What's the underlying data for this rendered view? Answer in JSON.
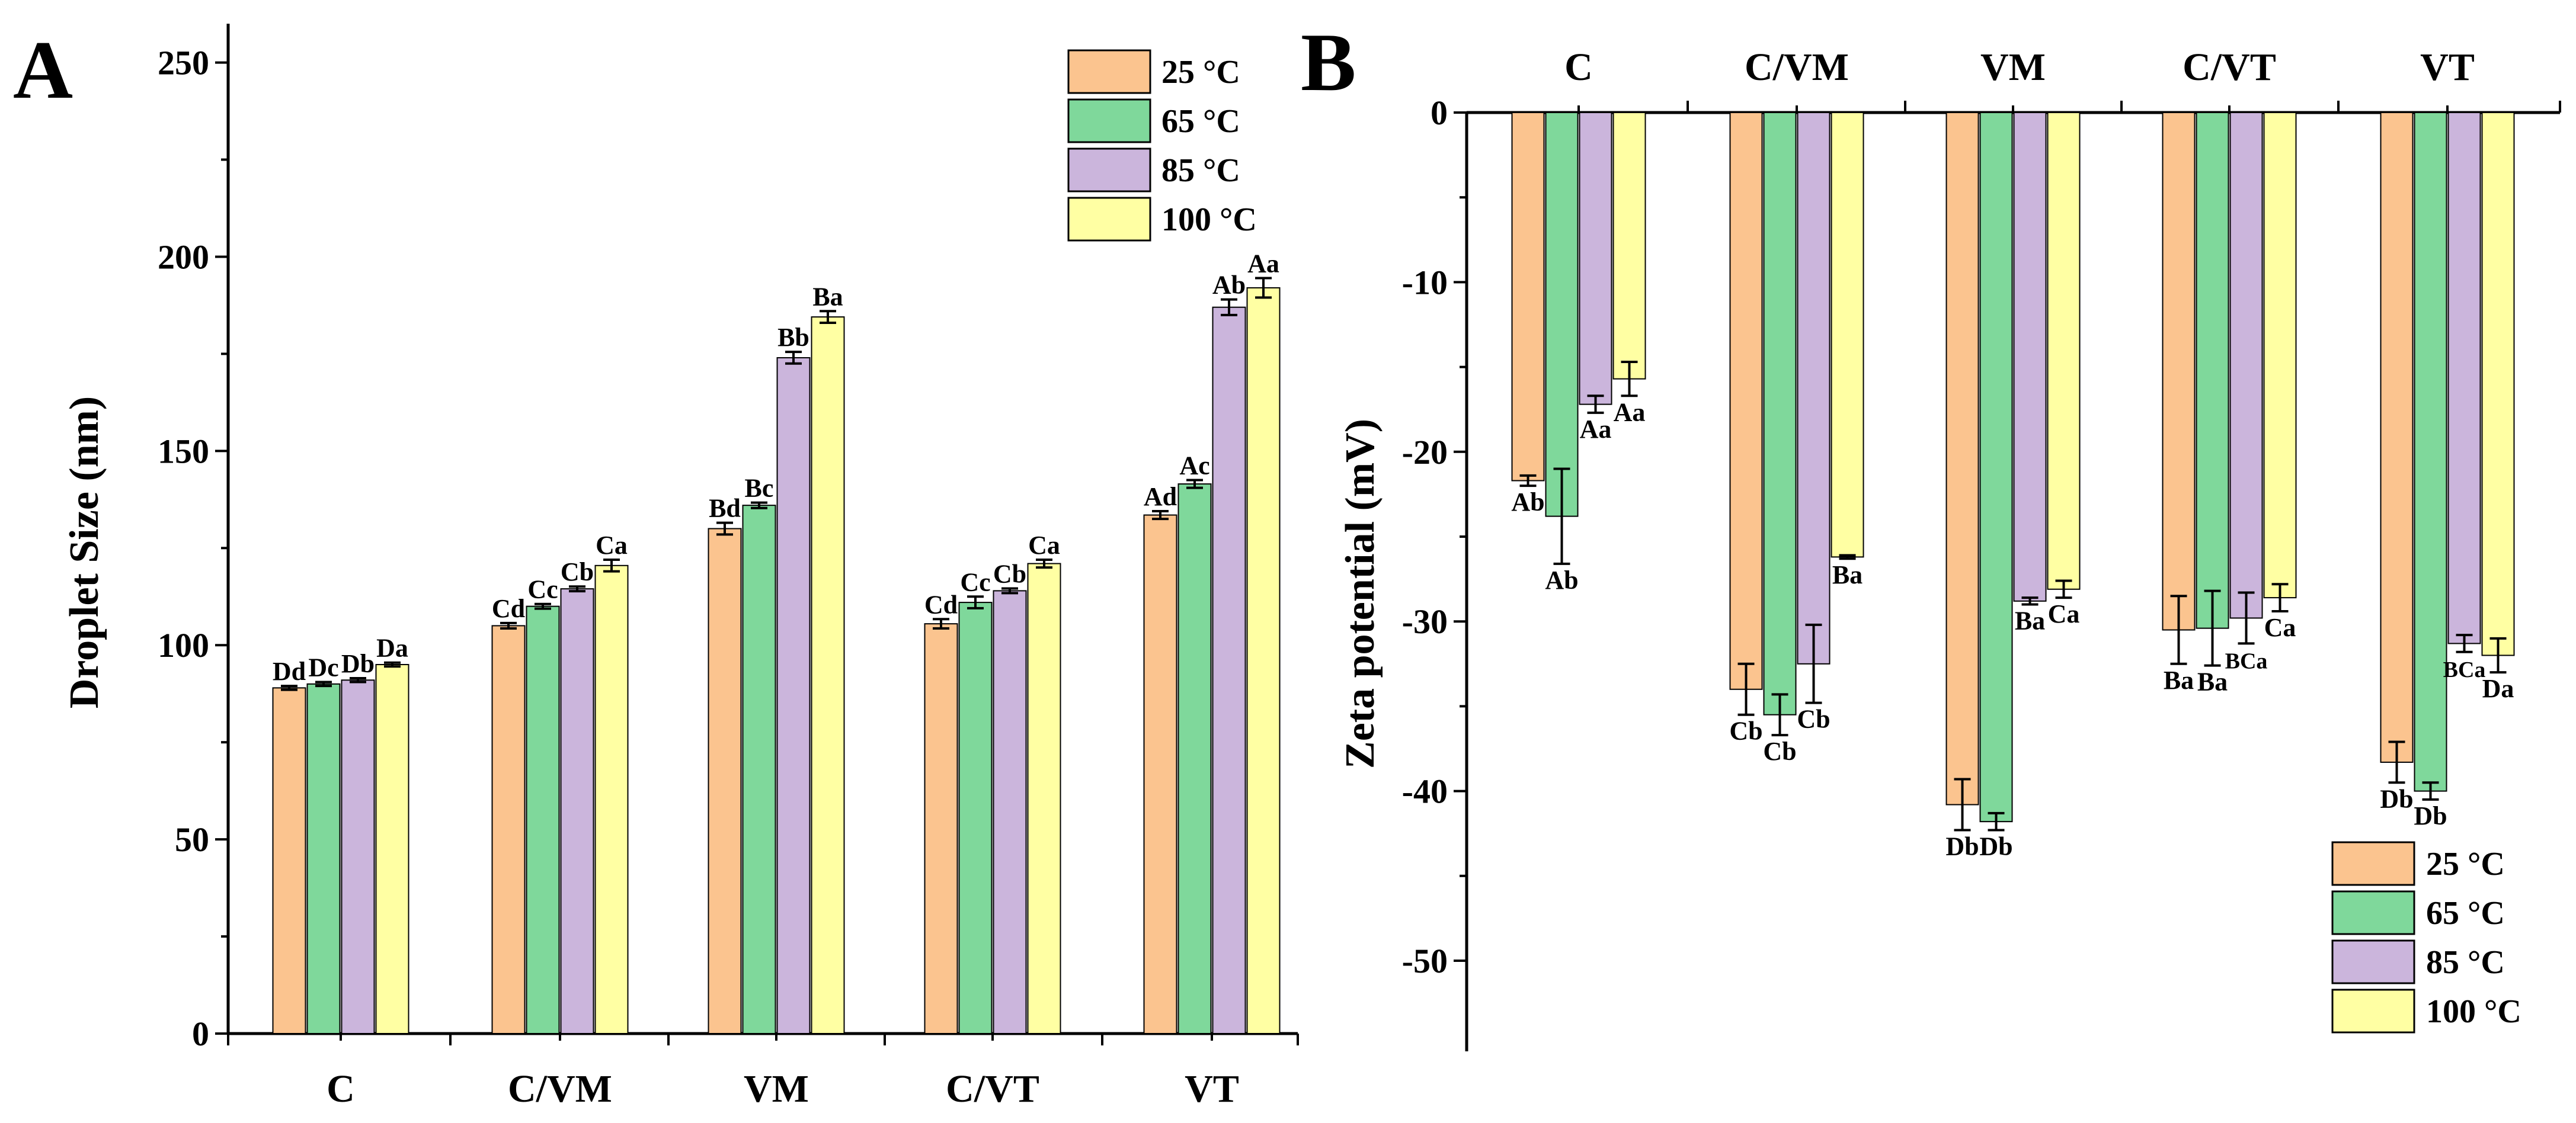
{
  "colors": {
    "c25": "#fbc48f",
    "c65": "#7fd89b",
    "c85": "#cbb5dc",
    "c100": "#ffffa3",
    "axis": "#000000"
  },
  "chart_data": [
    {
      "panel": "A",
      "type": "bar",
      "title": "",
      "xlabel": "",
      "ylabel": "Droplet  Size (nm)",
      "ylim": [
        0,
        260
      ],
      "yticks": [
        0,
        50,
        100,
        150,
        200,
        250
      ],
      "categories": [
        "C",
        "C/VM",
        "VM",
        "C/VT",
        "VT"
      ],
      "legend_position": "top-right",
      "series": [
        {
          "name": "25 °C",
          "values": [
            89,
            105,
            130,
            105.5,
            133.5
          ],
          "errors": [
            0.5,
            0.7,
            1.5,
            1.2,
            1.0
          ],
          "labels": [
            "Dd",
            "Cd",
            "Bd",
            "Cd",
            "Ad"
          ]
        },
        {
          "name": "65 °C",
          "values": [
            90,
            110,
            136,
            111,
            141.5
          ],
          "errors": [
            0.5,
            0.6,
            0.7,
            1.5,
            1.0
          ],
          "labels": [
            "Dc",
            "Cc",
            "Bc",
            "Cc",
            "Ac"
          ]
        },
        {
          "name": "85 °C",
          "values": [
            91,
            114.5,
            174,
            114,
            187
          ],
          "errors": [
            0.5,
            0.6,
            1.5,
            0.6,
            2.0
          ],
          "labels": [
            "Db",
            "Cb",
            "Bb",
            "Cb",
            "Ab"
          ]
        },
        {
          "name": "100 °C",
          "values": [
            95,
            120.5,
            184.5,
            121,
            192
          ],
          "errors": [
            0.5,
            1.5,
            1.5,
            1.0,
            2.5
          ],
          "labels": [
            "Da",
            "Ca",
            "Ba",
            "Ca",
            "Aa"
          ]
        }
      ]
    },
    {
      "panel": "B",
      "type": "bar",
      "title": "",
      "xlabel": "",
      "ylabel": "Zeta potential (mV)",
      "ylim": [
        -55,
        0
      ],
      "yticks": [
        0,
        -10,
        -20,
        -30,
        -40,
        -50
      ],
      "categories": [
        "C",
        "C/VM",
        "VM",
        "C/VT",
        "VT"
      ],
      "legend_position": "bottom-right",
      "series": [
        {
          "name": "25 °C",
          "values": [
            -21.7,
            -34,
            -40.8,
            -30.5,
            -38.3
          ],
          "errors": [
            0.3,
            1.5,
            1.5,
            2.0,
            1.2
          ],
          "labels": [
            "Ab",
            "Cb",
            "Db",
            "Ba",
            "Db"
          ]
        },
        {
          "name": "65 °C",
          "values": [
            -23.8,
            -35.5,
            -41.8,
            -30.4,
            -40
          ],
          "errors": [
            2.8,
            1.2,
            0.5,
            2.2,
            0.5
          ],
          "labels": [
            "Ab",
            "Cb",
            "Db",
            "Ba",
            "Db"
          ]
        },
        {
          "name": "85 °C",
          "values": [
            -17.2,
            -32.5,
            -28.8,
            -29.8,
            -31.3
          ],
          "errors": [
            0.5,
            2.3,
            0.2,
            1.5,
            0.5
          ],
          "labels": [
            "Aa",
            "Cb",
            "Ba",
            "BCa",
            "BCa"
          ]
        },
        {
          "name": "100 °C",
          "values": [
            -15.7,
            -26.2,
            -28.1,
            -28.6,
            -32
          ],
          "errors": [
            1.0,
            0.1,
            0.5,
            0.8,
            1.0
          ],
          "labels": [
            "Aa",
            "Ba",
            "Ca",
            "Ca",
            "Da"
          ]
        }
      ]
    }
  ]
}
